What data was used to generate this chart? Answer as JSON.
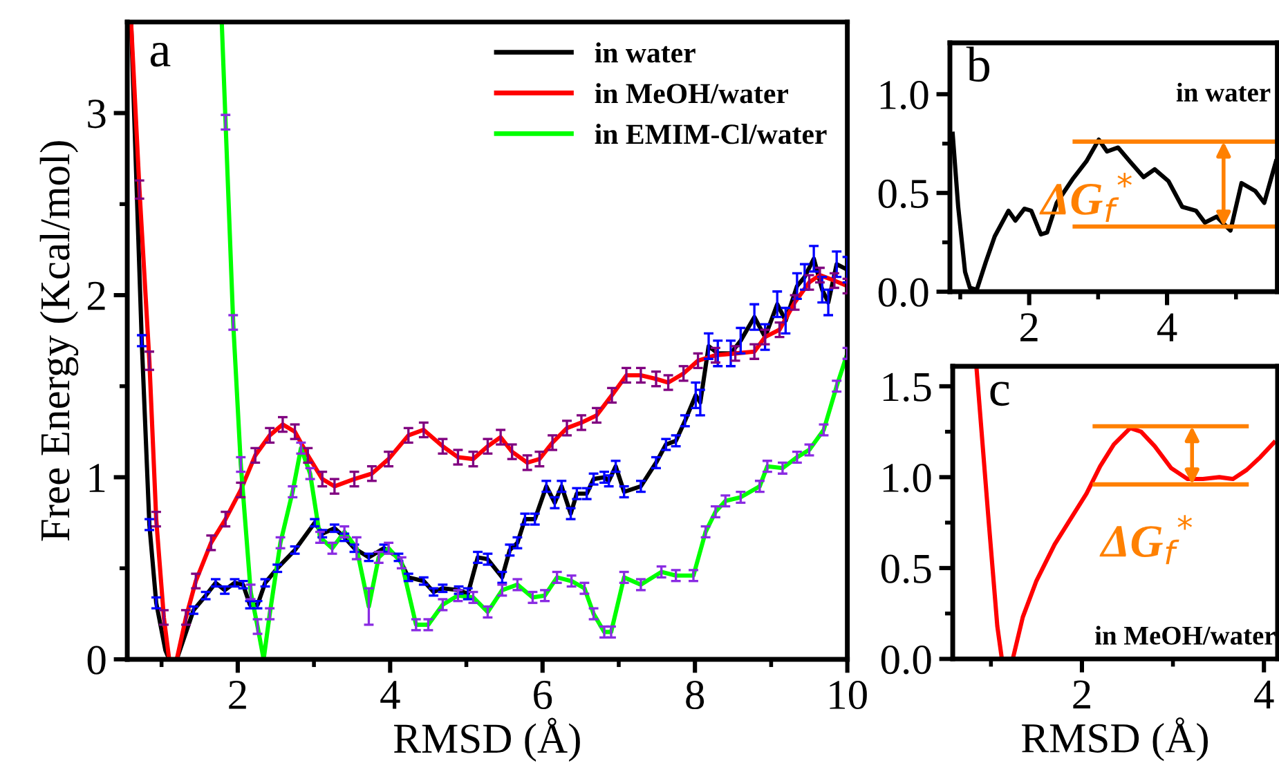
{
  "chart_data": [
    {
      "type": "line",
      "xlabel": "RMSD (Å)",
      "ylabel": "Free Energy (Kcal/mol)",
      "xlim": [
        0.55,
        10
      ],
      "ylim": [
        0,
        3.5
      ],
      "xticks": [
        {
          "value": 1,
          "label": null
        },
        2,
        {
          "value": 3,
          "label": null
        },
        4,
        {
          "value": 5,
          "label": null
        },
        6,
        {
          "value": 7,
          "label": null
        },
        8,
        {
          "value": 9,
          "label": null
        },
        10
      ],
      "yticks": [
        0,
        {
          "value": 0.5,
          "label": null
        },
        1,
        {
          "value": 1.5,
          "label": null
        },
        2,
        {
          "value": 2.5,
          "label": null
        },
        3
      ],
      "grid": false,
      "legend": "top right",
      "marker": "none",
      "line_style": "solid",
      "annotations": [
        "a"
      ],
      "series": [
        {
          "name": "in water",
          "color": "#000000",
          "x": [
            0.6,
            0.74,
            0.84,
            0.93,
            1.05,
            1.1,
            1.2,
            1.42,
            1.58,
            1.71,
            1.83,
            1.96,
            2.07,
            2.16,
            2.26,
            2.36,
            2.52,
            2.75,
            3.01,
            3.11,
            3.27,
            3.4,
            3.53,
            3.72,
            3.92,
            4.11,
            4.24,
            4.44,
            4.57,
            4.69,
            4.9,
            5.02,
            5.15,
            5.28,
            5.47,
            5.57,
            5.67,
            5.77,
            5.9,
            6.05,
            6.16,
            6.25,
            6.37,
            6.45,
            6.58,
            6.67,
            6.81,
            6.87,
            6.96,
            7.07,
            7.29,
            7.49,
            7.62,
            7.75,
            7.87,
            8.01,
            8.07,
            8.18,
            8.3,
            8.47,
            8.6,
            8.78,
            8.92,
            9.08,
            9.19,
            9.34,
            9.44,
            9.56,
            9.67,
            9.75,
            9.86,
            10.0
          ],
          "values": [
            3.5,
            1.75,
            0.74,
            0.31,
            0.05,
            0,
            0,
            0.27,
            0.35,
            0.42,
            0.38,
            0.42,
            0.41,
            0.3,
            0.3,
            0.42,
            0.5,
            0.6,
            0.75,
            0.69,
            0.72,
            0.67,
            0.61,
            0.56,
            0.61,
            0.56,
            0.45,
            0.43,
            0.37,
            0.39,
            0.38,
            0.36,
            0.56,
            0.55,
            0.45,
            0.6,
            0.64,
            0.77,
            0.77,
            0.95,
            0.86,
            0.95,
            0.8,
            0.91,
            0.91,
            0.99,
            1.0,
            0.98,
            1.06,
            0.92,
            0.95,
            1.08,
            1.18,
            1.2,
            1.31,
            1.45,
            1.41,
            1.72,
            1.68,
            1.68,
            1.75,
            1.88,
            1.77,
            1.95,
            1.86,
            2.05,
            2.1,
            2.2,
            2.03,
            1.96,
            2.17,
            2.14
          ],
          "errors": [
            null,
            0.03,
            0.03,
            0.03,
            null,
            null,
            null,
            0.02,
            0.02,
            0.02,
            0.02,
            0.02,
            0.02,
            0.02,
            0.02,
            0.02,
            0.02,
            0.02,
            0.02,
            0.02,
            0.02,
            0.02,
            0.02,
            0.02,
            0.02,
            0.02,
            0.02,
            0.02,
            0.02,
            0.02,
            0.02,
            0.03,
            0.03,
            0.03,
            0.03,
            0.03,
            0.03,
            0.03,
            0.03,
            0.03,
            0.03,
            0.03,
            0.03,
            0.03,
            0.03,
            0.03,
            0.03,
            0.03,
            0.03,
            0.03,
            0.03,
            0.03,
            0.03,
            0.03,
            0.03,
            0.07,
            0.07,
            0.07,
            0.07,
            0.07,
            0.07,
            0.07,
            0.07,
            0.07,
            0.07,
            0.07,
            0.07,
            0.07,
            0.07,
            0.07,
            0.07,
            0.07
          ]
        },
        {
          "name": "in MeOH/water",
          "color": "#ff0000",
          "x": [
            0.6,
            0.71,
            0.84,
            0.93,
            1.03,
            1.1,
            1.2,
            1.32,
            1.45,
            1.65,
            1.84,
            2.04,
            2.23,
            2.42,
            2.59,
            2.75,
            2.92,
            3.11,
            3.27,
            3.53,
            3.76,
            3.98,
            4.24,
            4.44,
            4.69,
            4.89,
            5.09,
            5.28,
            5.45,
            5.6,
            5.8,
            5.96,
            6.13,
            6.32,
            6.51,
            6.71,
            6.91,
            7.1,
            7.29,
            7.49,
            7.65,
            7.85,
            8.04,
            8.27,
            8.53,
            8.78,
            8.92,
            9.11,
            9.31,
            9.5,
            9.64,
            9.83,
            10.0
          ],
          "values": [
            3.5,
            2.58,
            1.64,
            0.77,
            0.23,
            0,
            0,
            0.23,
            0.43,
            0.64,
            0.77,
            0.93,
            1.12,
            1.23,
            1.29,
            1.25,
            1.12,
            0.99,
            0.95,
            0.99,
            1.02,
            1.1,
            1.23,
            1.26,
            1.17,
            1.11,
            1.1,
            1.17,
            1.22,
            1.14,
            1.08,
            1.1,
            1.19,
            1.27,
            1.3,
            1.34,
            1.45,
            1.56,
            1.56,
            1.54,
            1.52,
            1.57,
            1.64,
            1.67,
            1.68,
            1.69,
            1.77,
            1.81,
            1.96,
            2.07,
            2.11,
            2.08,
            2.05
          ],
          "errors": [
            null,
            0.05,
            0.05,
            0.04,
            0.04,
            null,
            null,
            0.04,
            0.04,
            0.04,
            0.04,
            0.04,
            0.04,
            0.04,
            0.04,
            0.04,
            0.04,
            0.04,
            0.04,
            0.04,
            0.04,
            0.04,
            0.04,
            0.04,
            0.04,
            0.04,
            0.04,
            0.04,
            0.04,
            0.04,
            0.04,
            0.04,
            0.04,
            0.04,
            0.04,
            0.04,
            0.04,
            0.04,
            0.04,
            0.04,
            0.04,
            0.04,
            0.04,
            0.04,
            0.04,
            0.04,
            0.04,
            0.04,
            0.04,
            0.04,
            0.04,
            0.04,
            0.04
          ]
        },
        {
          "name": "in EMIM-Cl/water",
          "color": "#00ff00",
          "x": [
            1.79,
            1.84,
            1.94,
            2.04,
            2.17,
            2.26,
            2.34,
            2.42,
            2.56,
            2.72,
            2.83,
            2.95,
            3.08,
            3.24,
            3.4,
            3.56,
            3.72,
            3.85,
            3.98,
            4.15,
            4.34,
            4.5,
            4.69,
            4.89,
            5.09,
            5.28,
            5.47,
            5.67,
            5.87,
            6.03,
            6.19,
            6.38,
            6.55,
            6.67,
            6.81,
            6.9,
            7.07,
            7.29,
            7.56,
            7.75,
            7.98,
            8.14,
            8.27,
            8.4,
            8.6,
            8.85,
            8.95,
            9.15,
            9.34,
            9.5,
            9.69,
            9.86,
            10.0
          ],
          "values": [
            3.5,
            2.95,
            1.85,
            1.07,
            0.37,
            0.18,
            0,
            0.25,
            0.64,
            0.92,
            1.16,
            1.02,
            0.67,
            0.61,
            0.7,
            0.61,
            0.29,
            0.56,
            0.61,
            0.53,
            0.19,
            0.19,
            0.3,
            0.35,
            0.34,
            0.26,
            0.38,
            0.41,
            0.34,
            0.35,
            0.45,
            0.43,
            0.39,
            0.25,
            0.15,
            0.15,
            0.45,
            0.41,
            0.48,
            0.46,
            0.46,
            0.7,
            0.81,
            0.87,
            0.89,
            0.95,
            1.06,
            1.05,
            1.11,
            1.15,
            1.26,
            1.5,
            1.68
          ],
          "errors": [
            null,
            0.04,
            0.04,
            0.04,
            0.04,
            0.04,
            null,
            0.03,
            0.03,
            0.03,
            0.03,
            0.03,
            0.03,
            0.03,
            0.03,
            0.06,
            0.1,
            0.03,
            0.03,
            0.03,
            0.03,
            0.03,
            0.03,
            0.03,
            0.03,
            0.03,
            0.03,
            0.03,
            0.03,
            0.03,
            0.03,
            0.03,
            0.03,
            0.03,
            0.03,
            0.03,
            0.03,
            0.03,
            0.03,
            0.03,
            0.03,
            0.03,
            0.03,
            0.03,
            0.03,
            0.03,
            0.03,
            0.03,
            0.03,
            0.03,
            0.03,
            0.03,
            0.03
          ]
        }
      ]
    },
    {
      "type": "line",
      "xlim": [
        0.85,
        5.6
      ],
      "ylim": [
        0,
        1.26
      ],
      "xticks": [
        {
          "value": 1,
          "label": null
        },
        2,
        {
          "value": 3,
          "label": null
        },
        4,
        {
          "value": 5,
          "label": null
        }
      ],
      "yticks": [
        {
          "value": 0,
          "label": "0.0"
        },
        {
          "value": 0.25,
          "label": null
        },
        {
          "value": 0.5,
          "label": "0.5"
        },
        {
          "value": 0.75,
          "label": null
        },
        {
          "value": 1.0,
          "label": "1.0"
        }
      ],
      "grid": false,
      "marker": "none",
      "line_style": "solid",
      "annotations": [
        "b",
        "in water",
        {
          "text": "ΔG$_{f}$$^{*}$",
          "x": 4.82,
          "y": 0.76
        }
      ],
      "series": [
        {
          "color": "#000000",
          "x": [
            0.89,
            0.97,
            1.07,
            1.14,
            1.24,
            1.37,
            1.5,
            1.7,
            1.8,
            1.93,
            2.03,
            2.17,
            2.26,
            2.4,
            2.63,
            2.83,
            3.01,
            3.13,
            3.29,
            3.46,
            3.66,
            3.82,
            4.02,
            4.22,
            4.42,
            4.55,
            4.72,
            4.92,
            5.08,
            5.28,
            5.41,
            5.58
          ],
          "values": [
            0.8,
            0.43,
            0.1,
            0.02,
            0.01,
            0.15,
            0.28,
            0.41,
            0.36,
            0.42,
            0.41,
            0.29,
            0.3,
            0.45,
            0.57,
            0.66,
            0.77,
            0.71,
            0.73,
            0.66,
            0.58,
            0.62,
            0.56,
            0.43,
            0.41,
            0.35,
            0.38,
            0.31,
            0.55,
            0.51,
            0.45,
            0.66
          ]
        },
        {
          "color": "#ff8000",
          "x": [
            2.66,
            5.58
          ],
          "values": [
            0.76,
            0.76
          ]
        },
        {
          "color": "#ff8000",
          "x": [
            2.66,
            5.58
          ],
          "values": [
            0.33,
            0.33
          ]
        }
      ]
    },
    {
      "type": "line",
      "xlabel": "RMSD (Å)",
      "xlim": [
        0.58,
        4.15
      ],
      "ylim": [
        0,
        1.61
      ],
      "xticks": [
        {
          "value": 1,
          "label": null
        },
        2,
        {
          "value": 3,
          "label": null
        },
        4
      ],
      "yticks": [
        {
          "value": 0,
          "label": "0.0"
        },
        {
          "value": 0.25,
          "label": null
        },
        {
          "value": 0.5,
          "label": "0.5"
        },
        {
          "value": 0.75,
          "label": null
        },
        {
          "value": 1.0,
          "label": "1.0"
        },
        {
          "value": 1.25,
          "label": null
        },
        {
          "value": 1.5,
          "label": "1.5"
        }
      ],
      "grid": false,
      "marker": "none",
      "line_style": "solid",
      "annotations": [
        "c",
        "in MeOH/water",
        {
          "text": "ΔG$_{f}$$^{*}$",
          "x": 3.21,
          "y": 1.28
        }
      ],
      "series": [
        {
          "color": "#ff0000",
          "x": [
            0.84,
            0.97,
            1.07,
            1.12,
            1.24,
            1.35,
            1.5,
            1.7,
            1.9,
            2.05,
            2.2,
            2.35,
            2.53,
            2.65,
            2.8,
            2.98,
            3.16,
            3.33,
            3.51,
            3.66,
            3.81,
            3.96,
            4.11
          ],
          "values": [
            1.61,
            0.79,
            0.18,
            0,
            0,
            0.23,
            0.43,
            0.63,
            0.79,
            0.91,
            1.06,
            1.18,
            1.27,
            1.25,
            1.17,
            1.05,
            0.99,
            0.99,
            1.0,
            0.99,
            1.04,
            1.11,
            1.19
          ]
        },
        {
          "color": "#ff8000",
          "x": [
            2.14,
            3.81
          ],
          "values": [
            1.28,
            1.28
          ]
        },
        {
          "color": "#ff8000",
          "x": [
            2.14,
            3.81
          ],
          "values": [
            0.96,
            0.96
          ]
        }
      ]
    }
  ]
}
